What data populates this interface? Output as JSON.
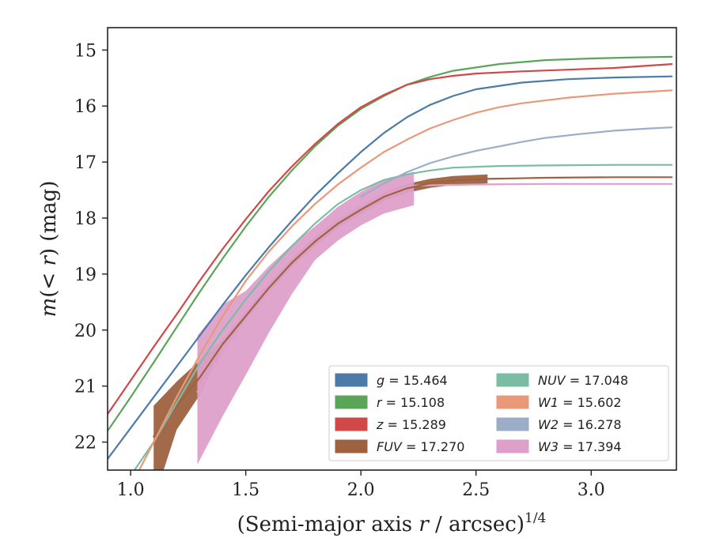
{
  "chart_data": {
    "type": "line",
    "xlabel": "(Semi-major axis r / arcsec)",
    "xlabel_parts": {
      "pre": "(Semi-major axis ",
      "var": "r",
      "post": " / arcsec)",
      "sup": "1/4"
    },
    "ylabel": "m(< r) (mag)",
    "ylabel_parts": {
      "m": "m",
      "open": "(",
      "lt": "< ",
      "r": "r",
      "close": ")",
      "unit": " (mag)"
    },
    "xlim": [
      0.9,
      3.37
    ],
    "ylim": [
      22.5,
      14.6
    ],
    "y_inverted": true,
    "xticks": [
      "1.0",
      "1.5",
      "2.0",
      "2.5",
      "3.0"
    ],
    "xtick_values": [
      1.0,
      1.5,
      2.0,
      2.5,
      3.0
    ],
    "yticks": [
      "15",
      "16",
      "17",
      "18",
      "19",
      "20",
      "21",
      "22"
    ],
    "ytick_values": [
      15,
      16,
      17,
      18,
      19,
      20,
      21,
      22
    ],
    "grid": false,
    "legend_position": "lower-right",
    "series": [
      {
        "key": "g",
        "name": "g = 15.464",
        "var": "g",
        "value": "15.464",
        "color": "#4c7ba8",
        "x": [
          0.9,
          1.0,
          1.1,
          1.2,
          1.3,
          1.4,
          1.5,
          1.6,
          1.7,
          1.8,
          1.9,
          2.0,
          2.1,
          2.2,
          2.3,
          2.4,
          2.5,
          2.7,
          2.9,
          3.1,
          3.35
        ],
        "y": [
          22.3,
          21.75,
          21.2,
          20.65,
          20.1,
          19.55,
          19.02,
          18.52,
          18.05,
          17.6,
          17.2,
          16.82,
          16.48,
          16.2,
          15.98,
          15.82,
          15.7,
          15.58,
          15.52,
          15.49,
          15.47
        ]
      },
      {
        "key": "r",
        "name": "r = 15.108",
        "var": "r",
        "value": "15.108",
        "color": "#5aa55a",
        "x": [
          0.9,
          1.0,
          1.1,
          1.2,
          1.3,
          1.4,
          1.5,
          1.6,
          1.7,
          1.8,
          1.9,
          2.0,
          2.1,
          2.2,
          2.3,
          2.4,
          2.6,
          2.8,
          3.0,
          3.2,
          3.35
        ],
        "y": [
          21.8,
          21.2,
          20.58,
          19.95,
          19.32,
          18.72,
          18.15,
          17.62,
          17.15,
          16.72,
          16.35,
          16.05,
          15.82,
          15.62,
          15.48,
          15.37,
          15.25,
          15.18,
          15.15,
          15.13,
          15.12
        ]
      },
      {
        "key": "z",
        "name": "z = 15.289",
        "var": "z",
        "value": "15.289",
        "color": "#d04848",
        "x": [
          0.9,
          1.0,
          1.1,
          1.2,
          1.3,
          1.4,
          1.5,
          1.6,
          1.7,
          1.8,
          1.9,
          2.0,
          2.1,
          2.2,
          2.3,
          2.4,
          2.5,
          2.7,
          2.9,
          3.1,
          3.35
        ],
        "y": [
          21.5,
          20.9,
          20.3,
          19.72,
          19.12,
          18.55,
          18.02,
          17.52,
          17.08,
          16.68,
          16.32,
          16.02,
          15.8,
          15.62,
          15.52,
          15.46,
          15.42,
          15.38,
          15.35,
          15.32,
          15.25
        ]
      },
      {
        "key": "FUV",
        "name": "FUV = 17.270",
        "var": "FUV",
        "value": "17.270",
        "color": "#9e6240",
        "x": [
          1.1,
          1.2,
          1.3,
          1.4,
          1.5,
          1.6,
          1.7,
          1.8,
          1.9,
          2.0,
          2.1,
          2.2,
          2.3,
          2.4,
          2.55,
          2.8,
          3.1,
          3.35
        ],
        "y": [
          21.9,
          21.35,
          20.85,
          20.25,
          19.75,
          19.25,
          18.8,
          18.42,
          18.1,
          17.85,
          17.62,
          17.47,
          17.38,
          17.33,
          17.3,
          17.28,
          17.27,
          17.27
        ],
        "band_xmax": 2.55
      },
      {
        "key": "NUV",
        "name": "NUV = 17.048",
        "var": "NUV",
        "value": "17.048",
        "color": "#7bbca4",
        "x": [
          1.0,
          1.1,
          1.2,
          1.3,
          1.4,
          1.5,
          1.6,
          1.7,
          1.8,
          1.9,
          2.0,
          2.1,
          2.2,
          2.3,
          2.4,
          2.6,
          2.8,
          3.1,
          3.35
        ],
        "y": [
          22.6,
          22.0,
          21.3,
          20.6,
          20.0,
          19.45,
          18.95,
          18.5,
          18.1,
          17.75,
          17.5,
          17.32,
          17.22,
          17.15,
          17.1,
          17.07,
          17.06,
          17.05,
          17.05
        ]
      },
      {
        "key": "W1",
        "name": "W1 = 15.602",
        "var": "W1",
        "value": "15.602",
        "color": "#e9997a",
        "x": [
          1.0,
          1.1,
          1.2,
          1.3,
          1.4,
          1.5,
          1.6,
          1.7,
          1.8,
          1.9,
          2.0,
          2.1,
          2.2,
          2.3,
          2.4,
          2.5,
          2.6,
          2.7,
          2.9,
          3.1,
          3.35
        ],
        "y": [
          22.8,
          22.0,
          21.2,
          20.45,
          19.75,
          19.12,
          18.6,
          18.15,
          17.75,
          17.4,
          17.1,
          16.82,
          16.6,
          16.4,
          16.25,
          16.12,
          16.02,
          15.95,
          15.85,
          15.78,
          15.72
        ]
      },
      {
        "key": "W2",
        "name": "W2 = 16.278",
        "var": "W2",
        "value": "16.278",
        "color": "#9badc9",
        "x": [
          2.0,
          2.1,
          2.2,
          2.3,
          2.4,
          2.5,
          2.6,
          2.7,
          2.8,
          2.95,
          3.1,
          3.25,
          3.35
        ],
        "y": [
          17.62,
          17.38,
          17.18,
          17.02,
          16.9,
          16.8,
          16.72,
          16.64,
          16.57,
          16.5,
          16.44,
          16.4,
          16.38
        ]
      },
      {
        "key": "W3",
        "name": "W3 = 17.394",
        "var": "W3",
        "value": "17.394",
        "color": "#dea0ca",
        "x": [
          1.29,
          1.4,
          1.5,
          1.6,
          1.7,
          1.8,
          1.9,
          2.0,
          2.1,
          2.23,
          2.5,
          2.8,
          3.1,
          3.35
        ],
        "y": [
          21.1,
          20.4,
          19.8,
          19.28,
          18.82,
          18.4,
          18.05,
          17.78,
          17.57,
          17.42,
          17.4,
          17.39,
          17.39,
          17.39
        ],
        "band_xmax": 2.23
      }
    ]
  }
}
